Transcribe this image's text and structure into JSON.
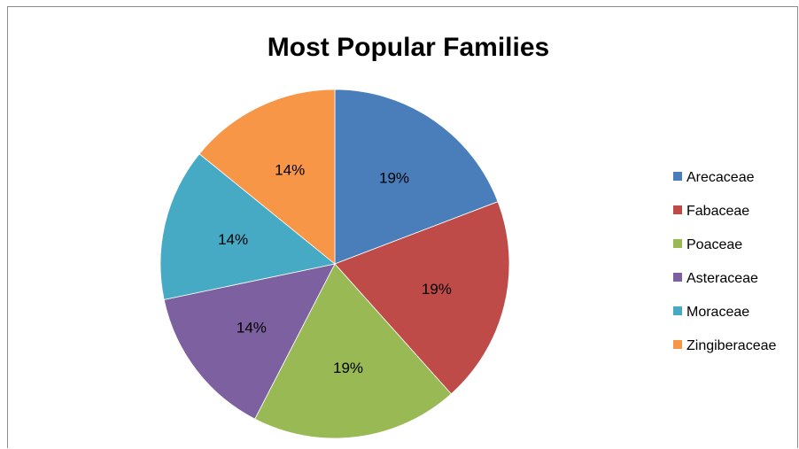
{
  "chart_data": {
    "type": "pie",
    "title": "Most Popular Families",
    "categories": [
      "Arecaceae",
      "Fabaceae",
      "Poaceae",
      "Asteraceae",
      "Moraceae",
      "Zingiberaceae"
    ],
    "values": [
      19,
      19,
      19,
      14,
      14,
      14
    ],
    "data_labels": [
      "19%",
      "19%",
      "19%",
      "14%",
      "14%",
      "14%"
    ],
    "colors": [
      "#4a7ebb",
      "#be4b48",
      "#98b954",
      "#7d60a0",
      "#46aac4",
      "#f79646"
    ],
    "start_angle": "12 o'clock",
    "direction": "clockwise",
    "legend": "right"
  }
}
